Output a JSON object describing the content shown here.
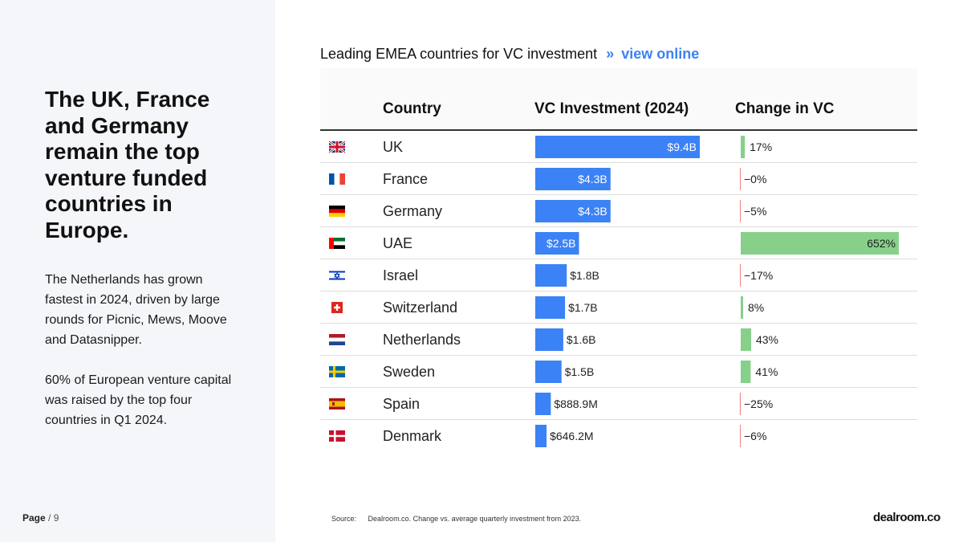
{
  "left_panel": {
    "headline": "The UK, France and Germany remain the top venture funded countries in Europe.",
    "paragraph1": "The Netherlands has grown fastest in 2024, driven by large rounds for Picnic, Mews, Moove and Datasnipper.",
    "paragraph2": "60% of European venture capital was raised by the top four countries in Q1 2024."
  },
  "footer": {
    "page_label": "Page",
    "page_number": "/ 9",
    "source_label": "Source:",
    "source_text": "Dealroom.co. Change vs. average quarterly investment from 2023.",
    "brand": "dealroom.co"
  },
  "chart_header": {
    "title": "Leading EMEA countries for VC investment",
    "separator": "»",
    "link": "view online"
  },
  "chart_data": {
    "type": "table",
    "title": "Leading EMEA countries for VC investment",
    "columns": [
      "Country",
      "VC Investment (2024)",
      "Change in VC"
    ],
    "rows": [
      {
        "country": "UK",
        "flag": "uk-flag",
        "investment": 9.4,
        "investment_label": "$9.4B",
        "change": 17,
        "change_label": "17%"
      },
      {
        "country": "France",
        "flag": "france-flag",
        "investment": 4.3,
        "investment_label": "$4.3B",
        "change": -0.3,
        "change_label": "−0%"
      },
      {
        "country": "Germany",
        "flag": "germany-flag",
        "investment": 4.3,
        "investment_label": "$4.3B",
        "change": -5,
        "change_label": "−5%"
      },
      {
        "country": "UAE",
        "flag": "uae-flag",
        "investment": 2.5,
        "investment_label": "$2.5B",
        "change": 652,
        "change_label": "652%"
      },
      {
        "country": "Israel",
        "flag": "israel-flag",
        "investment": 1.8,
        "investment_label": "$1.8B",
        "change": -17,
        "change_label": "−17%"
      },
      {
        "country": "Switzerland",
        "flag": "switzerland-flag",
        "investment": 1.7,
        "investment_label": "$1.7B",
        "change": 8,
        "change_label": "8%"
      },
      {
        "country": "Netherlands",
        "flag": "netherlands-flag",
        "investment": 1.6,
        "investment_label": "$1.6B",
        "change": 43,
        "change_label": "43%"
      },
      {
        "country": "Sweden",
        "flag": "sweden-flag",
        "investment": 1.5,
        "investment_label": "$1.5B",
        "change": 41,
        "change_label": "41%"
      },
      {
        "country": "Spain",
        "flag": "spain-flag",
        "investment": 0.8889,
        "investment_label": "$888.9M",
        "change": -25,
        "change_label": "−25%"
      },
      {
        "country": "Denmark",
        "flag": "denmark-flag",
        "investment": 0.6462,
        "investment_label": "$646.2M",
        "change": -6,
        "change_label": "−6%"
      }
    ],
    "investment_max": 9.4,
    "change_max": 652,
    "colors": {
      "investment_bar": "#3b82f6",
      "positive_change": "#86d08a",
      "negative_change": "#f08080"
    }
  }
}
